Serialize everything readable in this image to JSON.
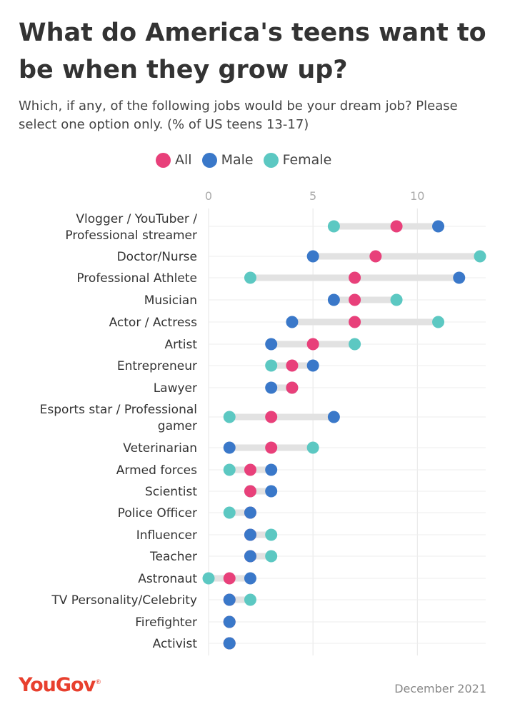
{
  "header": {
    "title": "What do America's teens want to be when they grow up?",
    "subtitle": "Which, if any, of the following jobs would be your dream job? Please select one option only. (% of US teens 13-17)"
  },
  "footer": {
    "logo": "YouGov",
    "logo_mark": "®",
    "date": "December 2021"
  },
  "colors": {
    "all": "#e8407a",
    "male": "#3a78c9",
    "female": "#5cc8c2",
    "connector": "#e2e2e2",
    "grid": "#e6e6e6",
    "logo": "#e8402e"
  },
  "chart_data": {
    "type": "dumbbell",
    "xlim": [
      0,
      13
    ],
    "ticks": [
      0,
      5,
      10
    ],
    "grid": true,
    "legend": "top",
    "series_names": [
      "All",
      "Male",
      "Female"
    ],
    "categories": [
      "Vlogger / YouTuber / Professional streamer",
      "Doctor/Nurse",
      "Professional Athlete",
      "Musician",
      "Actor / Actress",
      "Artist",
      "Entrepreneur",
      "Lawyer",
      "Esports star / Professional gamer",
      "Veterinarian",
      "Armed forces",
      "Scientist",
      "Police Officer",
      "Influencer",
      "Teacher",
      "Astronaut",
      "TV Personality/Celebrity",
      "Firefighter",
      "Activist"
    ],
    "category_lines": [
      [
        "Vlogger / YouTuber /",
        "Professional streamer"
      ],
      [
        "Doctor/Nurse"
      ],
      [
        "Professional Athlete"
      ],
      [
        "Musician"
      ],
      [
        "Actor / Actress"
      ],
      [
        "Artist"
      ],
      [
        "Entrepreneur"
      ],
      [
        "Lawyer"
      ],
      [
        "Esports star / Professional",
        "gamer"
      ],
      [
        "Veterinarian"
      ],
      [
        "Armed forces"
      ],
      [
        "Scientist"
      ],
      [
        "Police Officer"
      ],
      [
        "Influencer"
      ],
      [
        "Teacher"
      ],
      [
        "Astronaut"
      ],
      [
        "TV Personality/Celebrity"
      ],
      [
        "Firefighter"
      ],
      [
        "Activist"
      ]
    ],
    "series": [
      {
        "name": "All",
        "values": [
          9,
          8,
          7,
          7,
          7,
          5,
          4,
          4,
          3,
          3,
          2,
          2,
          2,
          2,
          2,
          1,
          1,
          1,
          1
        ]
      },
      {
        "name": "Male",
        "values": [
          11,
          5,
          12,
          6,
          4,
          3,
          5,
          3,
          6,
          1,
          3,
          3,
          2,
          2,
          2,
          2,
          1,
          1,
          1
        ]
      },
      {
        "name": "Female",
        "values": [
          6,
          13,
          2,
          9,
          11,
          7,
          3,
          4,
          1,
          5,
          1,
          2,
          1,
          3,
          3,
          0,
          2,
          1,
          1
        ]
      }
    ]
  }
}
